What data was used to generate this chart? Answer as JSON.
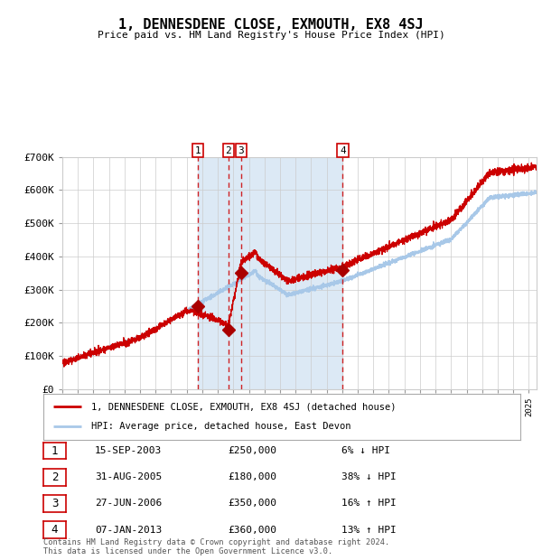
{
  "title": "1, DENNESDENE CLOSE, EXMOUTH, EX8 4SJ",
  "subtitle": "Price paid vs. HM Land Registry's House Price Index (HPI)",
  "footer": "Contains HM Land Registry data © Crown copyright and database right 2024.\nThis data is licensed under the Open Government Licence v3.0.",
  "legend_line1": "1, DENNESDENE CLOSE, EXMOUTH, EX8 4SJ (detached house)",
  "legend_line2": "HPI: Average price, detached house, East Devon",
  "transactions": [
    {
      "num": 1,
      "date": "15-SEP-2003",
      "price": 250000,
      "rel": "6% ↓ HPI",
      "year": 2003.71
    },
    {
      "num": 2,
      "date": "31-AUG-2005",
      "price": 180000,
      "rel": "38% ↓ HPI",
      "year": 2005.67
    },
    {
      "num": 3,
      "date": "27-JUN-2006",
      "price": 350000,
      "rel": "16% ↑ HPI",
      "year": 2006.49
    },
    {
      "num": 4,
      "date": "07-JAN-2013",
      "price": 360000,
      "rel": "13% ↑ HPI",
      "year": 2013.03
    }
  ],
  "hpi_color": "#a8c8e8",
  "price_color": "#cc0000",
  "marker_color": "#aa0000",
  "dashed_color": "#cc0000",
  "shade_color": "#dce9f5",
  "grid_color": "#cccccc",
  "bg_color": "#ffffff",
  "ylim": [
    0,
    700000
  ],
  "xlim_start": 1995,
  "xlim_end": 2025.5,
  "ylabel_ticks": [
    0,
    100000,
    200000,
    300000,
    400000,
    500000,
    600000,
    700000
  ],
  "ytick_labels": [
    "£0",
    "£100K",
    "£200K",
    "£300K",
    "£400K",
    "£500K",
    "£600K",
    "£700K"
  ],
  "trans_prices": [
    250000,
    180000,
    350000,
    360000
  ]
}
